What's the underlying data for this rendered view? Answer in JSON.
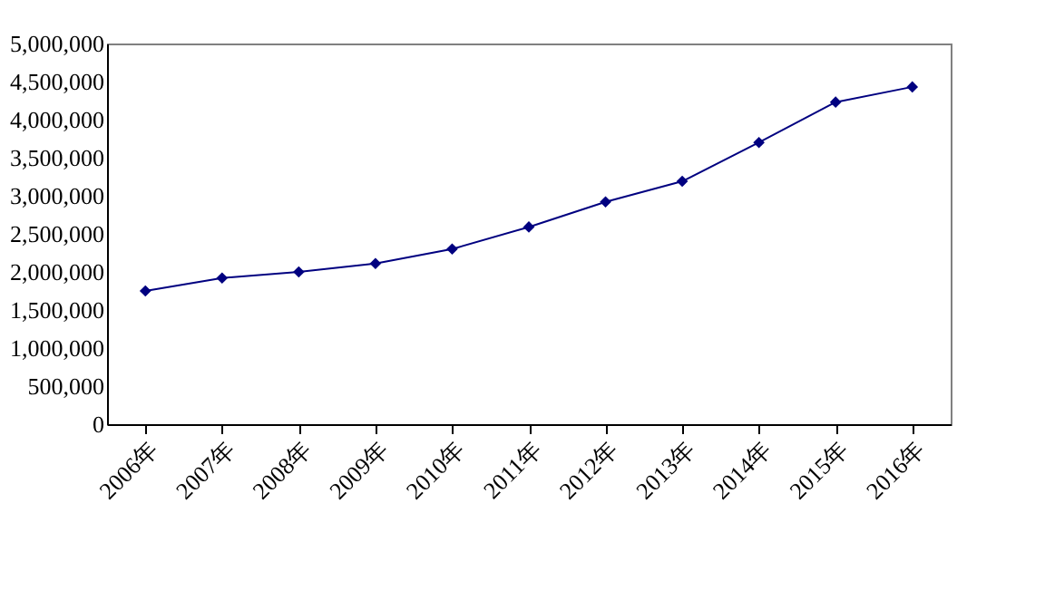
{
  "chart_data": {
    "type": "line",
    "categories": [
      "2006年",
      "2007年",
      "2008年",
      "2009年",
      "2010年",
      "2011年",
      "2012年",
      "2013年",
      "2014年",
      "2015年",
      "2016年"
    ],
    "series": [
      {
        "color": "#000080",
        "values": [
          1750000,
          1920000,
          2000000,
          2110000,
          2300000,
          2590000,
          2920000,
          3190000,
          3700000,
          4230000,
          4430000
        ]
      }
    ],
    "ylim": [
      0,
      5000000
    ],
    "yticks": [
      0,
      {
        "value": 500000,
        "label": "500,000"
      },
      {
        "value": 1000000,
        "label": "1,000,000"
      },
      {
        "value": 1500000,
        "label": "1,500,000"
      },
      {
        "value": 2000000,
        "label": "2,000,000"
      },
      {
        "value": 2500000,
        "label": "2,500,000"
      },
      {
        "value": 3000000,
        "label": "3,000,000"
      },
      {
        "value": 3500000,
        "label": "3,500,000"
      },
      {
        "value": 4000000,
        "label": "4,000,000"
      },
      {
        "value": 4500000,
        "label": "4,500,000"
      },
      {
        "value": 5000000,
        "label": "5,000,000"
      }
    ],
    "grid": false,
    "marker": "diamond",
    "line_style": "solid"
  }
}
